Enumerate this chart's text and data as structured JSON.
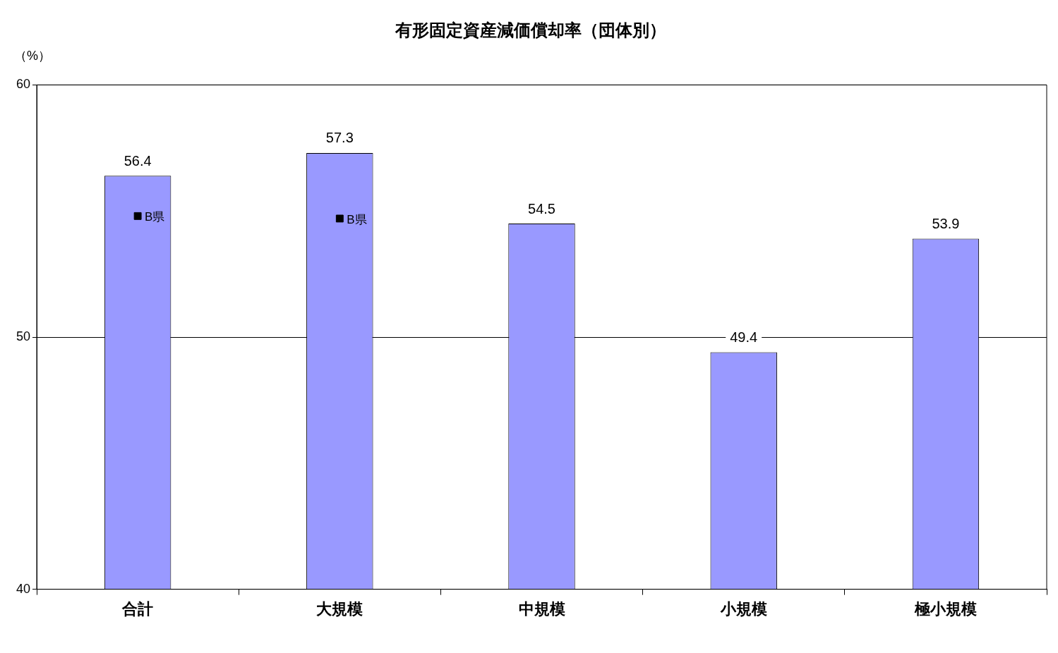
{
  "chart_data": {
    "type": "bar",
    "title": "有形固定資産減価償却率（団体別）",
    "ylabel": "（%）",
    "categories": [
      "合計",
      "大規模",
      "中規模",
      "小規模",
      "極小規模"
    ],
    "series": [
      {
        "color": "#9999ff",
        "values": [
          56.4,
          57.3,
          54.5,
          49.4,
          53.9
        ],
        "value_labels": [
          "56.4",
          "57.3",
          "54.5",
          "49.4",
          "53.9"
        ]
      },
      {
        "type": "scatter",
        "name": "B県",
        "color": "#000000",
        "marker": "square",
        "x": [
          "合計",
          "大規模"
        ],
        "values": [
          54.8,
          54.7
        ]
      }
    ],
    "ylim": [
      40,
      60
    ],
    "yticks": [
      40,
      50,
      60
    ],
    "grid": "y",
    "legend": false
  }
}
